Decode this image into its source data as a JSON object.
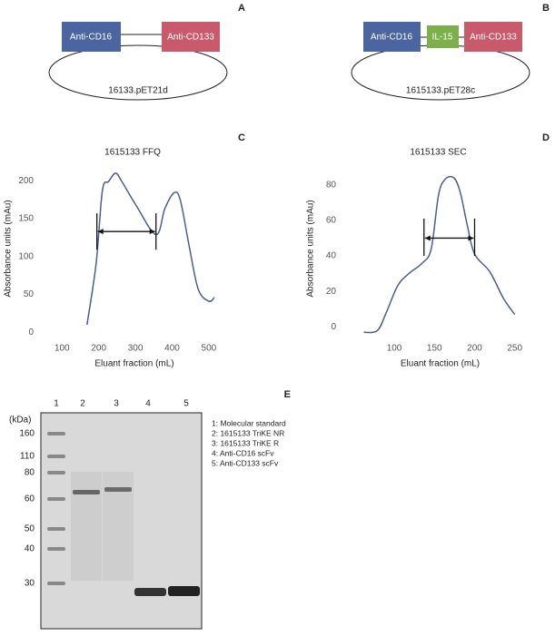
{
  "panels": {
    "A": {
      "letter": "A",
      "left": "Anti-CD16",
      "right": "Anti-CD133",
      "plasmid": "16133.pET21d"
    },
    "B": {
      "letter": "B",
      "left": "Anti-CD16",
      "middle": "IL-15",
      "right": "Anti-CD133",
      "plasmid": "1615133.pET28c"
    },
    "E": {
      "letter": "E",
      "unit": "(kDa)",
      "lanes": [
        "1",
        "2",
        "3",
        "4",
        "5"
      ],
      "markers": [
        {
          "value": 160,
          "label": "160"
        },
        {
          "value": 110,
          "label": "110"
        },
        {
          "value": 80,
          "label": "80"
        },
        {
          "value": 60,
          "label": "60"
        },
        {
          "value": 50,
          "label": "50"
        },
        {
          "value": 40,
          "label": "40"
        },
        {
          "value": 30,
          "label": "30"
        }
      ],
      "legend": [
        "1: Molecular standard",
        "2: 1615133 TriKE NR",
        "3: 1615133 TriKE R",
        "4: Anti-CD16 scFv",
        "5: Anti-CD133 scFv"
      ]
    }
  },
  "chart_data": [
    {
      "type": "line",
      "panel_label": "C",
      "title": "1615133 FFQ",
      "x_label": "Eluant fraction (mL)",
      "y_label": "Absorbance units (mAu)",
      "x": [
        168,
        193,
        210,
        227,
        246,
        263,
        300,
        356,
        380,
        405,
        422,
        446,
        471,
        500,
        515
      ],
      "series": [
        {
          "color": "#4a5f8f",
          "values": [
            10,
            91,
            187,
            199,
            210,
            199,
            169,
            129,
            163,
            184,
            175,
            115,
            57,
            41,
            46
          ]
        }
      ],
      "range_marker": {
        "x": [
          195,
          356
        ],
        "y": 133,
        "span": [
          109,
          157
        ]
      },
      "xlim": [
        30,
        525
      ],
      "ylim": [
        -14,
        211
      ],
      "xticks": [
        100,
        200,
        300,
        400,
        500
      ],
      "yticks": [
        0,
        50,
        100,
        150,
        200
      ]
    },
    {
      "type": "line",
      "panel_label": "D",
      "title": "1615133 SEC",
      "x_label": "Eluant fraction (mL)",
      "y_label": "Absorbance units (mAu)",
      "x": [
        62,
        79,
        90,
        104,
        118,
        135,
        146,
        155,
        163,
        174,
        182,
        191,
        200,
        219,
        236,
        250
      ],
      "series": [
        {
          "color": "#4a5f8f",
          "values": [
            -3,
            -2,
            8,
            23,
            30,
            36,
            44,
            74,
            83,
            84,
            76,
            57,
            41,
            31,
            16,
            7
          ]
        }
      ],
      "range_marker": {
        "x": [
          137,
          200
        ],
        "y": 50,
        "span": [
          40,
          61
        ]
      },
      "xlim": [
        31,
        265
      ],
      "ylim": [
        -9,
        87
      ],
      "xticks": [
        100,
        150,
        200,
        250
      ],
      "yticks": [
        0,
        20,
        40,
        60,
        80
      ]
    }
  ]
}
